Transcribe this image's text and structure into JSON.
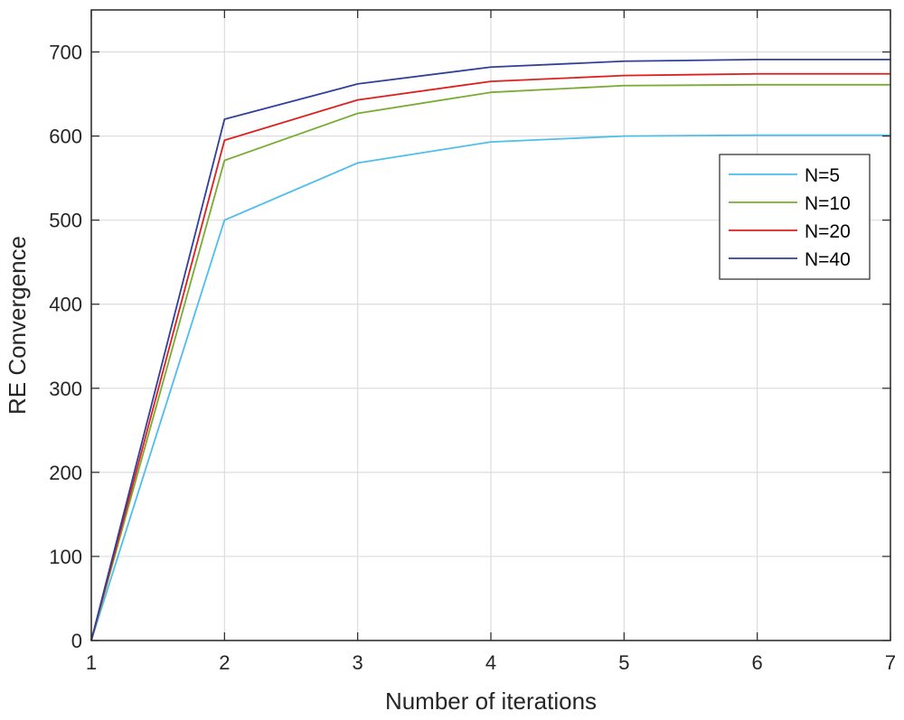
{
  "chart_data": {
    "type": "line",
    "title": "",
    "xlabel": "Number of iterations",
    "ylabel": "RE Convergence",
    "xlim": [
      1,
      7
    ],
    "ylim": [
      0,
      750
    ],
    "x_ticks": [
      "1",
      "2",
      "3",
      "4",
      "5",
      "6",
      "7"
    ],
    "y_ticks": [
      "0",
      "100",
      "200",
      "300",
      "400",
      "500",
      "600",
      "700"
    ],
    "grid": true,
    "legend_position": "right",
    "x": [
      1,
      2,
      3,
      4,
      5,
      6,
      7
    ],
    "series": [
      {
        "name": "N=5",
        "color": "#4dbeee",
        "values": [
          0,
          500,
          568,
          593,
          600,
          601,
          601
        ]
      },
      {
        "name": "N=10",
        "color": "#77ac30",
        "values": [
          0,
          571,
          627,
          652,
          660,
          661,
          661
        ]
      },
      {
        "name": "N=20",
        "color": "#e01e1e",
        "values": [
          0,
          595,
          643,
          665,
          672,
          674,
          674
        ]
      },
      {
        "name": "N=40",
        "color": "#2f3f9c",
        "values": [
          0,
          620,
          662,
          682,
          689,
          691,
          691
        ]
      }
    ],
    "colors": {
      "grid": "#dcdcdc",
      "axis": "#262626",
      "background": "#ffffff"
    }
  }
}
